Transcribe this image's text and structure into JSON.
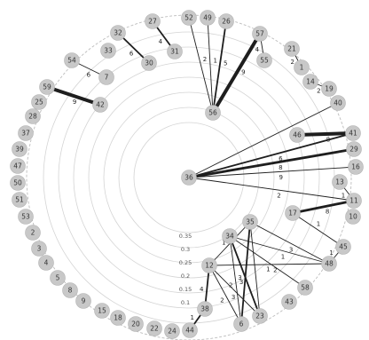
{
  "rings": [
    {
      "label": "0.35"
    },
    {
      "label": "0.3"
    },
    {
      "label": "0.25"
    },
    {
      "label": "0.2"
    },
    {
      "label": "0.15"
    },
    {
      "label": "0.1"
    }
  ],
  "nodes": [
    {
      "id": "52"
    },
    {
      "id": "49"
    },
    {
      "id": "26"
    },
    {
      "id": "27"
    },
    {
      "id": "32"
    },
    {
      "id": "33"
    },
    {
      "id": "30"
    },
    {
      "id": "31"
    },
    {
      "id": "54"
    },
    {
      "id": "7"
    },
    {
      "id": "59"
    },
    {
      "id": "42"
    },
    {
      "id": "25"
    },
    {
      "id": "28"
    },
    {
      "id": "37"
    },
    {
      "id": "39"
    },
    {
      "id": "47"
    },
    {
      "id": "50"
    },
    {
      "id": "51"
    },
    {
      "id": "53"
    },
    {
      "id": "2"
    },
    {
      "id": "3"
    },
    {
      "id": "4"
    },
    {
      "id": "5"
    },
    {
      "id": "8"
    },
    {
      "id": "9"
    },
    {
      "id": "15"
    },
    {
      "id": "18"
    },
    {
      "id": "20"
    },
    {
      "id": "22"
    },
    {
      "id": "24"
    },
    {
      "id": "44"
    },
    {
      "id": "57"
    },
    {
      "id": "55"
    },
    {
      "id": "21"
    },
    {
      "id": "1"
    },
    {
      "id": "14"
    },
    {
      "id": "19"
    },
    {
      "id": "40"
    },
    {
      "id": "56"
    },
    {
      "id": "46"
    },
    {
      "id": "41"
    },
    {
      "id": "29"
    },
    {
      "id": "16"
    },
    {
      "id": "36"
    },
    {
      "id": "13"
    },
    {
      "id": "11"
    },
    {
      "id": "17"
    },
    {
      "id": "10"
    },
    {
      "id": "45"
    },
    {
      "id": "48"
    },
    {
      "id": "35"
    },
    {
      "id": "34"
    },
    {
      "id": "12"
    },
    {
      "id": "58"
    },
    {
      "id": "43"
    },
    {
      "id": "38"
    },
    {
      "id": "6"
    },
    {
      "id": "23"
    }
  ],
  "edges": [
    {
      "a": "56",
      "b": "52",
      "w": 1,
      "label": "2"
    },
    {
      "a": "56",
      "b": "49",
      "w": 1,
      "label": "1"
    },
    {
      "a": "56",
      "b": "26",
      "w": 2,
      "label": "5"
    },
    {
      "a": "56",
      "b": "57",
      "w": 4,
      "label": "9"
    },
    {
      "a": "57",
      "b": "55",
      "w": 1,
      "label": "4"
    },
    {
      "a": "27",
      "b": "31",
      "w": 2,
      "label": "4"
    },
    {
      "a": "32",
      "b": "30",
      "w": 2,
      "label": "6"
    },
    {
      "a": "54",
      "b": "7",
      "w": 1,
      "label": "6"
    },
    {
      "a": "59",
      "b": "42",
      "w": 4,
      "label": "9"
    },
    {
      "a": "21",
      "b": "1",
      "w": 1,
      "label": "2"
    },
    {
      "a": "14",
      "b": "19",
      "w": 1,
      "label": "2"
    },
    {
      "a": "36",
      "b": "41",
      "w": 2,
      "label": "6"
    },
    {
      "a": "36",
      "b": "29",
      "w": 3,
      "label": "8"
    },
    {
      "a": "36",
      "b": "16",
      "w": 1,
      "label": "9"
    },
    {
      "a": "36",
      "b": "40",
      "w": 1,
      "label": ""
    },
    {
      "a": "36",
      "b": "11",
      "w": 1,
      "label": "2"
    },
    {
      "a": "46",
      "b": "41",
      "w": 4,
      "label": "8"
    },
    {
      "a": "13",
      "b": "11",
      "w": 1,
      "label": "1"
    },
    {
      "a": "17",
      "b": "11",
      "w": 3,
      "label": "8"
    },
    {
      "a": "35",
      "b": "48",
      "w": 1,
      "label": "3"
    },
    {
      "a": "35",
      "b": "6",
      "w": 2,
      "label": "3"
    },
    {
      "a": "35",
      "b": "23",
      "w": 1,
      "label": ""
    },
    {
      "a": "35",
      "b": "12",
      "w": 1,
      "label": "1"
    },
    {
      "a": "34",
      "b": "23",
      "w": 2,
      "label": "3"
    },
    {
      "a": "34",
      "b": "6",
      "w": 1,
      "label": "2"
    },
    {
      "a": "34",
      "b": "48",
      "w": 1,
      "label": "1"
    },
    {
      "a": "34",
      "b": "58",
      "w": 1,
      "label": "1"
    },
    {
      "a": "12",
      "b": "48",
      "w": 1,
      "label": "2"
    },
    {
      "a": "12",
      "b": "23",
      "w": 1,
      "label": "3"
    },
    {
      "a": "12",
      "b": "6",
      "w": 1,
      "label": "2"
    },
    {
      "a": "12",
      "b": "38",
      "w": 2,
      "label": "4"
    },
    {
      "a": "38",
      "b": "44",
      "w": 2,
      "label": "1"
    },
    {
      "a": "45",
      "b": "48",
      "w": 1,
      "label": "1"
    },
    {
      "a": "45",
      "b": "17",
      "w": 1,
      "label": "1"
    }
  ]
}
